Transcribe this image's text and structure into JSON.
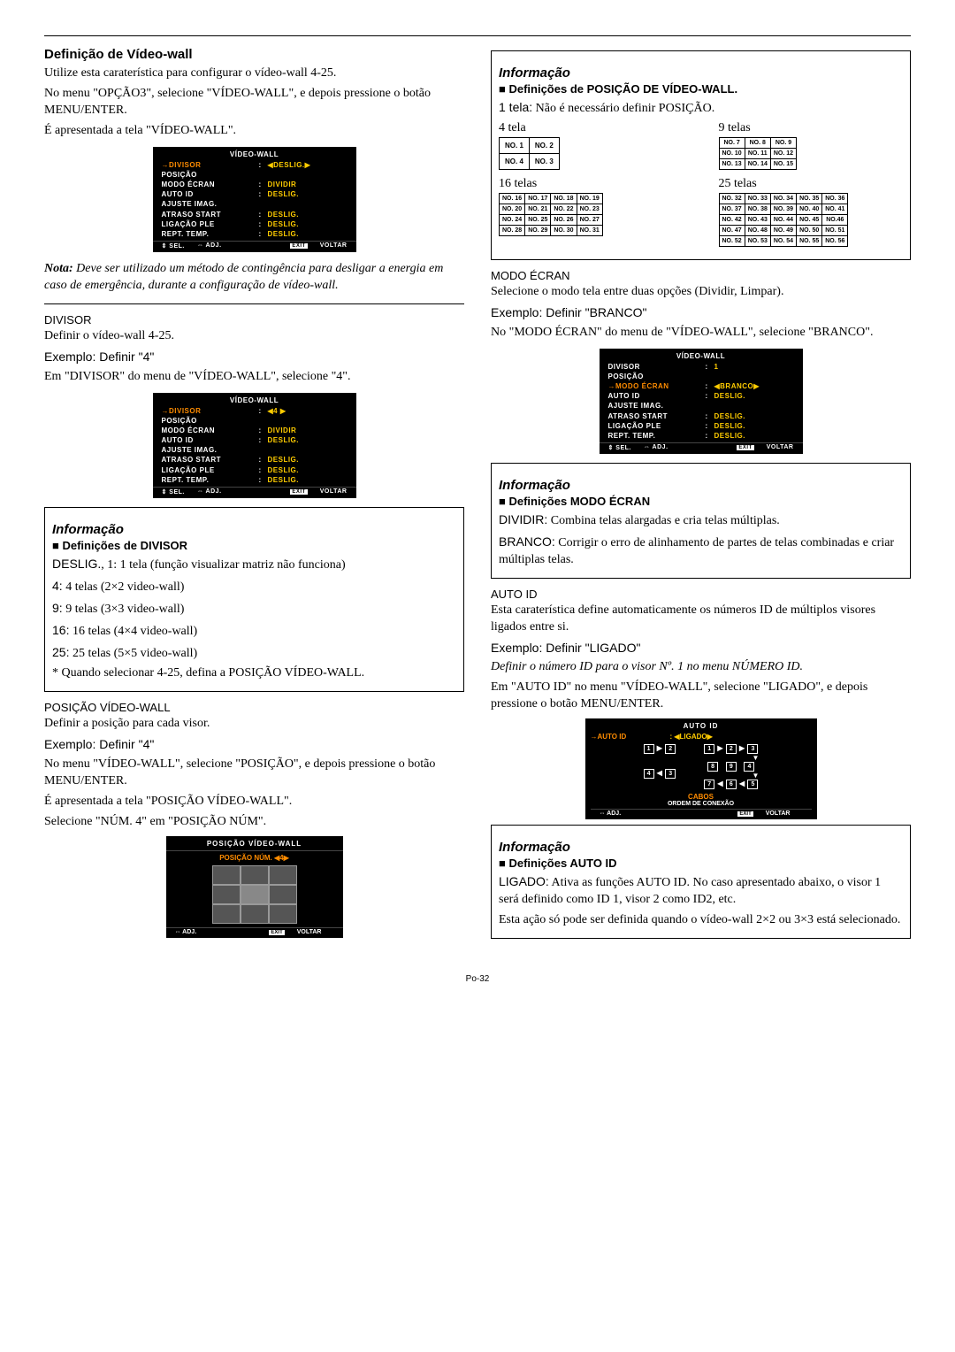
{
  "left": {
    "h2": "Definição de Vídeo-wall",
    "p1": "Utilize esta caraterística para configurar o vídeo-wall 4-25.",
    "p2": "No menu \"OPÇÃO3\", selecione \"VÍDEO-WALL\", e depois pressione o botão MENU/ENTER.",
    "p3": "É apresentada a tela \"VÍDEO-WALL\".",
    "menu1": {
      "title": "VÍDEO-WALL",
      "rows": [
        [
          "→DIVISOR",
          ":",
          "◀DESLIG.▶",
          true,
          true
        ],
        [
          "POSIÇÃO",
          "",
          "",
          false,
          false
        ],
        [
          "MODO ÉCRAN",
          ":",
          "DIVIDIR",
          false,
          true
        ],
        [
          "AUTO ID",
          ":",
          "DESLIG.",
          false,
          true
        ],
        [
          "AJUSTE IMAG.",
          "",
          "",
          false,
          false
        ],
        [
          "ATRASO START",
          ":",
          "DESLIG.",
          false,
          true
        ],
        [
          "LIGAÇÃO PLE",
          ":",
          "DESLIG.",
          false,
          true
        ],
        [
          "REPT. TEMP.",
          ":",
          "DESLIG.",
          false,
          true
        ]
      ]
    },
    "nota_label": "Nota:",
    "nota": " Deve ser utilizado um método de contingência para desligar a energia em caso de emergência, durante a configuração de vídeo-wall.",
    "divisor_label": "DIVISOR",
    "divisor_p1": "Definir o vídeo-wall 4-25.",
    "divisor_ex": "Exemplo: Definir \"4\"",
    "divisor_p2": "Em \"DIVISOR\" do menu de \"VÍDEO-WALL\", selecione \"4\".",
    "menu2": {
      "title": "VÍDEO-WALL",
      "rows": [
        [
          "→DIVISOR",
          ":",
          "◀4        ▶",
          true,
          true
        ],
        [
          "POSIÇÃO",
          "",
          "",
          false,
          false
        ],
        [
          "MODO ÉCRAN",
          ":",
          "DIVIDIR",
          false,
          true
        ],
        [
          "AUTO ID",
          ":",
          "DESLIG.",
          false,
          true
        ],
        [
          "AJUSTE IMAG.",
          "",
          "",
          false,
          false
        ],
        [
          "ATRASO START",
          ":",
          "DESLIG.",
          false,
          true
        ],
        [
          "LIGAÇÃO PLE",
          ":",
          "DESLIG.",
          false,
          true
        ],
        [
          "REPT. TEMP.",
          ":",
          "DESLIG.",
          false,
          true
        ]
      ]
    },
    "info1_title": "Informação",
    "info1_sub": "Definições de DIVISOR",
    "info1_l1a": "DESLIG.",
    "info1_l1b": ", 1: 1 tela (função visualizar matriz não funciona)",
    "info1_l2a": "4:",
    "info1_l2b": " 4 telas (2×2 video-wall)",
    "info1_l3a": "9:",
    "info1_l3b": " 9 telas (3×3 video-wall)",
    "info1_l4a": "16:",
    "info1_l4b": " 16 telas (4×4 video-wall)",
    "info1_l5a": "25:",
    "info1_l5b": " 25 telas (5×5 video-wall)",
    "info1_l6": "* Quando selecionar 4-25, defina a POSIÇÃO VÍDEO-WALL.",
    "pos_label": "POSIÇÃO VÍDEO-WALL",
    "pos_p1": "Definir a posição para cada visor.",
    "pos_ex": "Exemplo: Definir \"4\"",
    "pos_p2": "No menu \"VÍDEO-WALL\", selecione \"POSIÇÃO\", e depois pressione o botão MENU/ENTER.",
    "pos_p3": "É apresentada a tela \"POSIÇÃO VÍDEO-WALL\".",
    "pos_p4": "Selecione \"NÚM. 4\" em \"POSIÇÃO NÚM\".",
    "pos_menu_title": "POSIÇÃO VÍDEO-WALL",
    "pos_menu_row": "POSIÇÃO NÚM. ◀4▶"
  },
  "right": {
    "info_title": "Informação",
    "sub1": "Definições de POSIÇÃO DE VÍDEO-WALL.",
    "l1a": "1 tela:",
    "l1b": " Não é necessário definir POSIÇÃO.",
    "t4": "4 tela",
    "t9": "9 telas",
    "t16": "16 telas",
    "t25": "25 telas",
    "g4": [
      [
        "NO. 1",
        "NO. 2"
      ],
      [
        "NO. 4",
        "NO. 3"
      ]
    ],
    "g9": [
      [
        "NO. 7",
        "NO. 8",
        "NO. 9"
      ],
      [
        "NO. 10",
        "NO. 11",
        "NO. 12"
      ],
      [
        "NO. 13",
        "NO. 14",
        "NO. 15"
      ]
    ],
    "g16": [
      [
        "NO. 16",
        "NO. 17",
        "NO. 18",
        "NO. 19"
      ],
      [
        "NO. 20",
        "NO. 21",
        "NO. 22",
        "NO. 23"
      ],
      [
        "NO. 24",
        "NO. 25",
        "NO. 26",
        "NO. 27"
      ],
      [
        "NO. 28",
        "NO. 29",
        "NO. 30",
        "NO. 31"
      ]
    ],
    "g25": [
      [
        "NO. 32",
        "NO. 33",
        "NO. 34",
        "NO. 35",
        "NO. 36"
      ],
      [
        "NO. 37",
        "NO. 38",
        "NO. 39",
        "NO. 40",
        "NO. 41"
      ],
      [
        "NO. 42",
        "NO. 43",
        "NO. 44",
        "NO. 45",
        "NO.46"
      ],
      [
        "NO. 47",
        "NO. 48",
        "NO. 49",
        "NO. 50",
        "NO. 51"
      ],
      [
        "NO. 52",
        "NO. 53",
        "NO. 54",
        "NO. 55",
        "NO. 56"
      ]
    ],
    "modo_label": "MODO ÉCRAN",
    "modo_p1": "Selecione o modo tela entre duas opções (Dividir, Limpar).",
    "modo_ex": "Exemplo: Definir \"BRANCO\"",
    "modo_p2": "No \"MODO ÉCRAN\" do menu de \"VÍDEO-WALL\", selecione \"BRANCO\".",
    "menu3": {
      "title": "VÍDEO-WALL",
      "rows": [
        [
          "DIVISOR",
          ":",
          "1",
          false,
          true
        ],
        [
          "POSIÇÃO",
          "",
          "",
          false,
          false
        ],
        [
          "→MODO ÉCRAN",
          ":",
          "◀BRANCO▶",
          true,
          true
        ],
        [
          "AUTO ID",
          ":",
          "DESLIG.",
          false,
          true
        ],
        [
          "AJUSTE IMAG.",
          "",
          "",
          false,
          false
        ],
        [
          "ATRASO START",
          ":",
          "DESLIG.",
          false,
          true
        ],
        [
          "LIGAÇÃO PLE",
          ":",
          "DESLIG.",
          false,
          true
        ],
        [
          "REPT. TEMP.",
          ":",
          "DESLIG.",
          false,
          true
        ]
      ]
    },
    "info2_title": "Informação",
    "info2_sub": "Definições MODO ÉCRAN",
    "info2_l1a": "DIVIDIR:",
    "info2_l1b": " Combina telas alargadas e cria telas múltiplas.",
    "info2_l2a": "BRANCO:",
    "info2_l2b": " Corrigir o erro de alinhamento de partes de telas combinadas e criar múltiplas telas.",
    "autoid_label": "AUTO ID",
    "autoid_p1": "Esta caraterística define automaticamente os números ID de múltiplos visores ligados entre si.",
    "autoid_ex": "Exemplo: Definir \"LIGADO\"",
    "autoid_p2": "Definir o número ID para o visor Nº. 1 no menu NÚMERO ID.",
    "autoid_p3": "Em \"AUTO ID\" no menu \"VÍDEO-WALL\", selecione \"LIGADO\", e depois pressione o botão MENU/ENTER.",
    "autoid_menu_title": "AUTO ID",
    "autoid_menu_left": "→AUTO ID",
    "autoid_menu_right": ": ◀LIGADO▶",
    "cabos": "CABOS",
    "ordem": "ORDEM DE CONEXÃO",
    "info3_title": "Informação",
    "info3_sub": "Definições AUTO ID",
    "info3_l1a": "LIGADO:",
    "info3_l1b": " Ativa as funções AUTO ID. No caso apresentado abaixo, o visor 1 será definido como ID 1, visor 2 como ID2, etc.",
    "info3_l2": "Esta ação só pode ser definida quando o vídeo-wall 2×2 ou 3×3 está selecionado."
  },
  "footer": "Po-32",
  "menufoot": {
    "sel": "⇕ SEL.",
    "adj": "⇔ ADJ.",
    "exit": "VOLTAR"
  }
}
